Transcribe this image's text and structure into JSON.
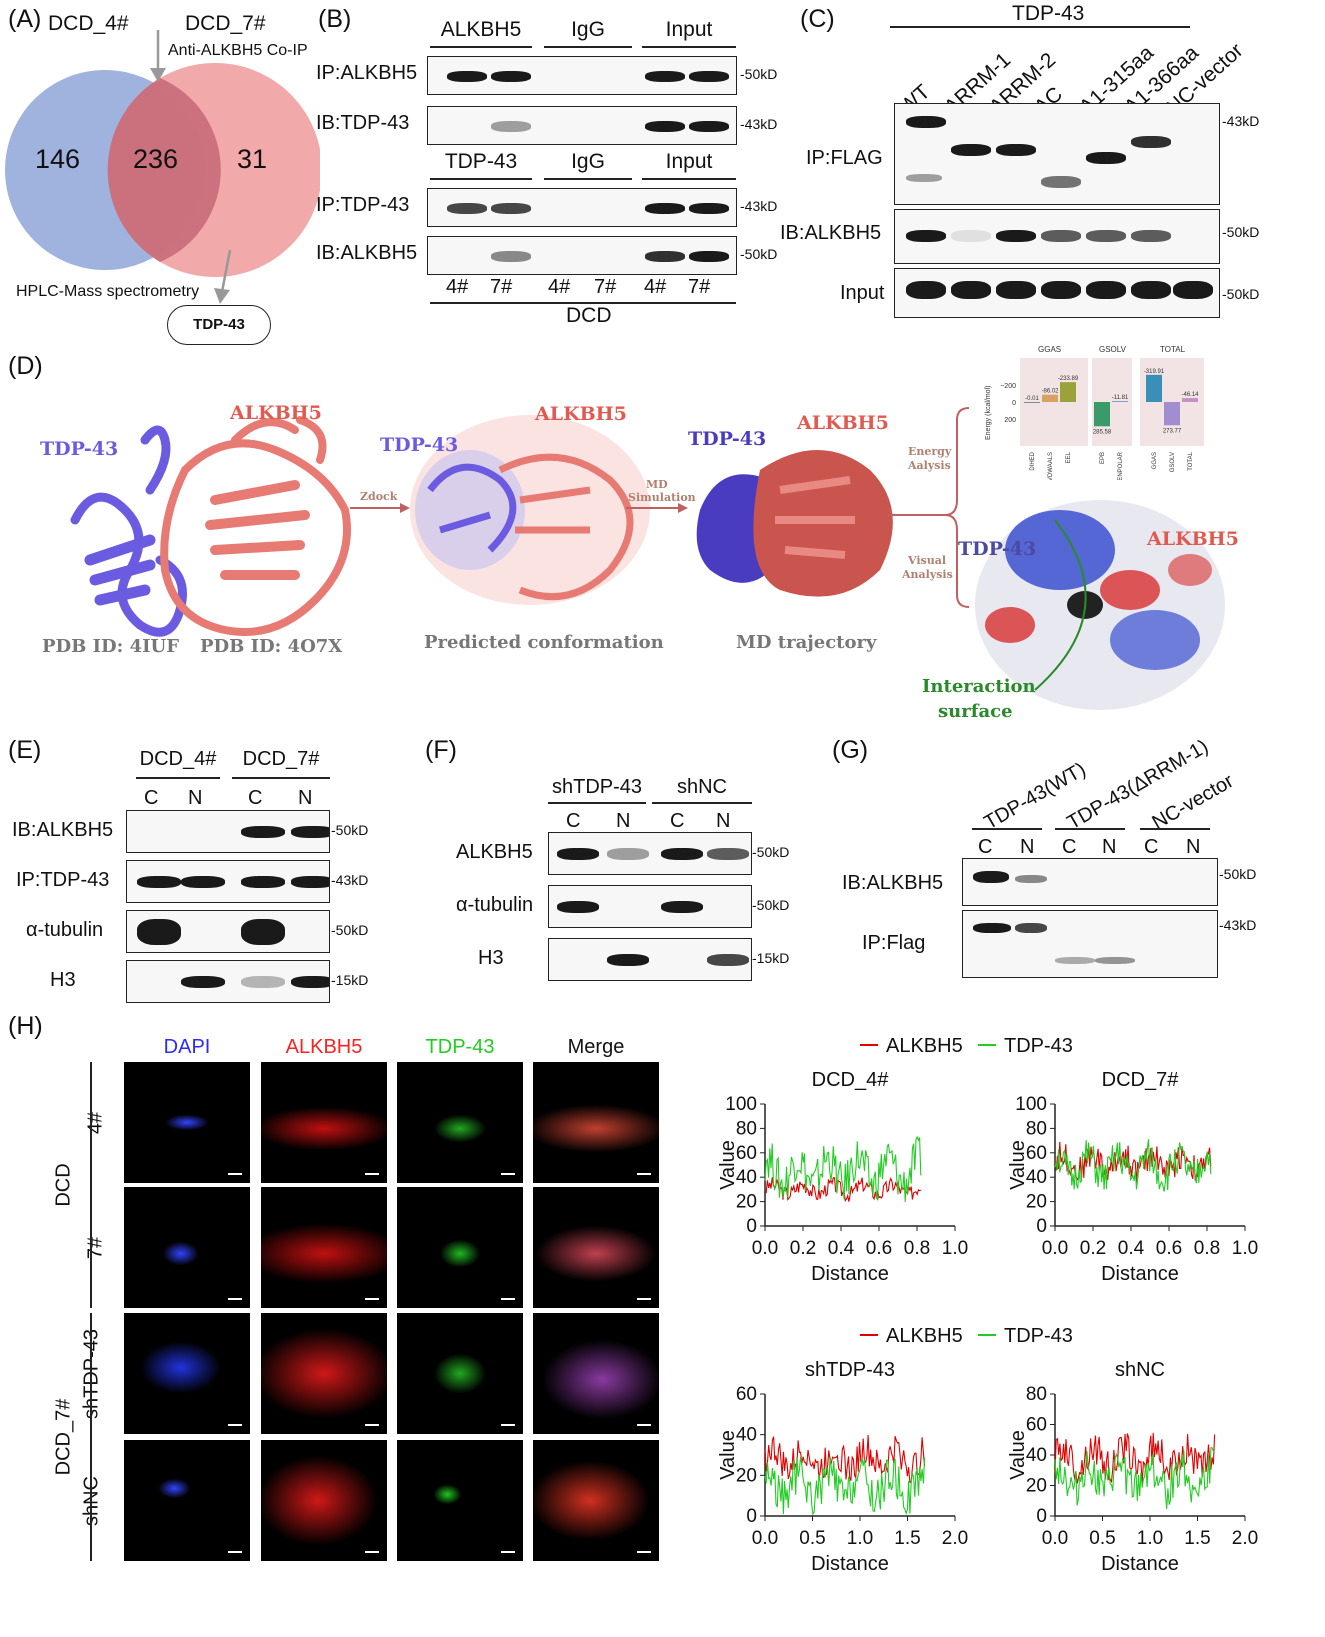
{
  "panels": {
    "A": "(A)",
    "B": "(B)",
    "C": "(C)",
    "D": "(D)",
    "E": "(E)",
    "F": "(F)",
    "G": "(G)",
    "H": "(H)"
  },
  "venn": {
    "left_title": "DCD_4#",
    "right_title": "DCD_7#",
    "left_only": "146",
    "overlap": "236",
    "right_only": "31",
    "coip_label": "Anti-ALKBH5 Co-IP",
    "ms_label": "HPLC-Mass spectrometry",
    "result": "TDP-43",
    "left_color": "#9fb3de",
    "right_color": "#ef9a9a",
    "overlap_color": "#c86b7a"
  },
  "panelB": {
    "top_headers": [
      "ALKBH5",
      "IgG",
      "Input"
    ],
    "bottom_headers": [
      "TDP-43",
      "IgG",
      "Input"
    ],
    "rows": [
      "IP:ALKBH5",
      "IB:TDP-43",
      "IP:TDP-43",
      "IB:ALKBH5"
    ],
    "markers": [
      "50kD",
      "43kD",
      "43kD",
      "50kD"
    ],
    "lanes": [
      "4#",
      "7#",
      "4#",
      "7#",
      "4#",
      "7#"
    ],
    "group": "DCD"
  },
  "panelC": {
    "group": "TDP-43",
    "lanes": [
      "WT",
      "ΔRRM-1",
      "ΔRRM-2",
      "ΔC",
      "Δ1-315aa",
      "Δ1-366aa",
      "NC-vector"
    ],
    "rows": [
      "IP:FLAG",
      "IB:ALKBH5",
      "Input"
    ],
    "markers": [
      "43kD",
      "50kD",
      "50kD"
    ]
  },
  "panelD": {
    "tdp": "TDP-43",
    "alk": "ALKBH5",
    "pdb1": "PDB ID: 4IUF",
    "pdb2": "PDB ID: 4O7X",
    "zdock": "Zdock",
    "md1": "MD",
    "md2": "Simulation",
    "predicted": "Predicted conformation",
    "trajectory": "MD trajectory",
    "energy1": "Energy",
    "energy2": "Aalysis",
    "visual1": "Visual",
    "visual2": "Analysis",
    "interaction1": "Interaction",
    "interaction2": "surface",
    "energy_chart": {
      "ylabel": "Energy (kcal/mol)",
      "groups": [
        "GGAS",
        "GSOLV",
        "TOTAL"
      ],
      "yticks": [
        "−200",
        "0",
        "200"
      ],
      "bars": [
        {
          "label": "DIHED",
          "value": -0.01,
          "text": "-0.01",
          "color": "#888888"
        },
        {
          "label": "VDWAALS",
          "value": -86.02,
          "text": "-86.02",
          "color": "#d9a060"
        },
        {
          "label": "EEL",
          "value": -233.89,
          "text": "-233.89",
          "color": "#9aa23a"
        },
        {
          "label": "EPB",
          "value": 285.58,
          "text": "285.58",
          "color": "#3a9a6a"
        },
        {
          "label": "ENPOLAR",
          "value": -11.81,
          "text": "-11.81",
          "color": "#7fa0c8"
        },
        {
          "label": "GGAS",
          "value": -319.91,
          "text": "-319.91",
          "color": "#3a8fb8"
        },
        {
          "label": "GSOLV",
          "value": 273.77,
          "text": "273.77",
          "color": "#a08ed0"
        },
        {
          "label": "TOTAL",
          "value": -46.14,
          "text": "-46.14",
          "color": "#c890c8"
        }
      ]
    }
  },
  "panelE": {
    "groups": [
      "DCD_4#",
      "DCD_7#"
    ],
    "lanes": [
      "C",
      "N",
      "C",
      "N"
    ],
    "rows": [
      "IB:ALKBH5",
      "IP:TDP-43",
      "α-tubulin",
      "H3"
    ],
    "markers": [
      "50kD",
      "43kD",
      "50kD",
      "15kD"
    ]
  },
  "panelF": {
    "groups": [
      "shTDP-43",
      "shNC"
    ],
    "lanes": [
      "C",
      "N",
      "C",
      "N"
    ],
    "rows": [
      "ALKBH5",
      "α-tubulin",
      "H3"
    ],
    "markers": [
      "50kD",
      "50kD",
      "15kD"
    ]
  },
  "panelG": {
    "groups": [
      "TDP-43(WT)",
      "TDP-43(ΔRRM-1)",
      "NC-vector"
    ],
    "lanes": [
      "C",
      "N",
      "C",
      "N",
      "C",
      "N"
    ],
    "rows": [
      "IB:ALKBH5",
      "IP:Flag"
    ],
    "markers": [
      "50kD",
      "43kD"
    ]
  },
  "panelH": {
    "channels": [
      "DAPI",
      "ALKBH5",
      "TDP-43",
      "Merge"
    ],
    "channel_colors": [
      "#2b2bff",
      "#ff2020",
      "#22cc22",
      "#111111"
    ],
    "row_groups": [
      "DCD",
      "DCD_7#"
    ],
    "rows": [
      "4#",
      "7#",
      "shTDP-43",
      "shNC"
    ]
  },
  "chart_data": [
    {
      "type": "line",
      "title": "DCD_4#",
      "xlabel": "Distance",
      "ylabel": "Value",
      "xlim": [
        0,
        1.0
      ],
      "ylim": [
        0,
        100
      ],
      "xticks": [
        "0.0",
        "0.2",
        "0.4",
        "0.6",
        "0.8",
        "1.0"
      ],
      "yticks": [
        "0",
        "20",
        "40",
        "60",
        "80",
        "100"
      ],
      "series": [
        {
          "name": "ALKBH5",
          "color": "#e00000",
          "mean": 30,
          "amp": 8,
          "end": 0.82
        },
        {
          "name": "TDP-43",
          "color": "#22cc22",
          "mean": 45,
          "amp": 22,
          "end": 0.82
        }
      ]
    },
    {
      "type": "line",
      "title": "DCD_7#",
      "xlabel": "Distance",
      "ylabel": "Value",
      "xlim": [
        0,
        1.0
      ],
      "ylim": [
        0,
        100
      ],
      "xticks": [
        "0.0",
        "0.2",
        "0.4",
        "0.6",
        "0.8",
        "1.0"
      ],
      "yticks": [
        "0",
        "20",
        "40",
        "60",
        "80",
        "100"
      ],
      "series": [
        {
          "name": "ALKBH5",
          "color": "#e00000",
          "mean": 52,
          "amp": 14,
          "end": 0.82
        },
        {
          "name": "TDP-43",
          "color": "#22cc22",
          "mean": 48,
          "amp": 18,
          "end": 0.82
        }
      ]
    },
    {
      "type": "line",
      "title": "shTDP-43",
      "xlabel": "Distance",
      "ylabel": "Value",
      "xlim": [
        0,
        2.0
      ],
      "ylim": [
        0,
        60
      ],
      "xticks": [
        "0.0",
        "0.5",
        "1.0",
        "1.5",
        "2.0"
      ],
      "yticks": [
        "0",
        "20",
        "40",
        "60"
      ],
      "series": [
        {
          "name": "ALKBH5",
          "color": "#e00000",
          "mean": 28,
          "amp": 10,
          "end": 1.68
        },
        {
          "name": "TDP-43",
          "color": "#22cc22",
          "mean": 15,
          "amp": 12,
          "end": 1.68
        }
      ]
    },
    {
      "type": "line",
      "title": "shNC",
      "xlabel": "Distance",
      "ylabel": "Value",
      "xlim": [
        0,
        2.0
      ],
      "ylim": [
        0,
        80
      ],
      "xticks": [
        "0.0",
        "0.5",
        "1.0",
        "1.5",
        "2.0"
      ],
      "yticks": [
        "0",
        "20",
        "40",
        "60",
        "80"
      ],
      "series": [
        {
          "name": "ALKBH5",
          "color": "#e00000",
          "mean": 38,
          "amp": 14,
          "end": 1.68
        },
        {
          "name": "TDP-43",
          "color": "#22cc22",
          "mean": 25,
          "amp": 16,
          "end": 1.68
        }
      ]
    }
  ]
}
